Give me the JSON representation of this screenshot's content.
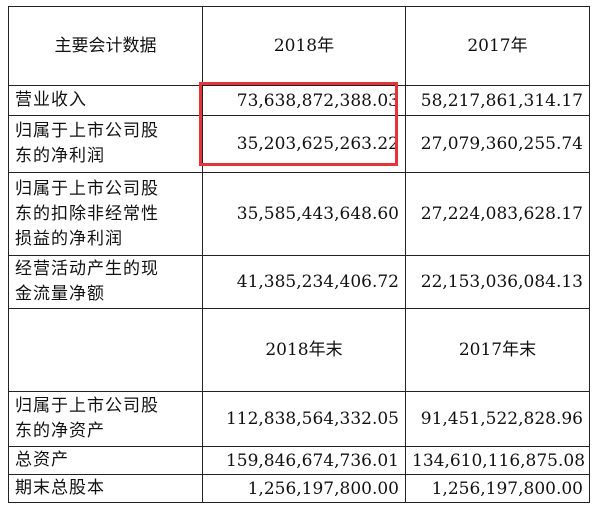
{
  "header": {
    "label": "主要会计数据",
    "col_2018": "2018年",
    "col_2017": "2017年"
  },
  "rows_a": [
    {
      "label_lines": [
        "营业收入"
      ],
      "v2018": "73,638,872,388.03",
      "v2017": "58,217,861,314.17"
    },
    {
      "label_lines": [
        "归属于上市公司股",
        "东的净利润"
      ],
      "v2018": "35,203,625,263.22",
      "v2017": "27,079,360,255.74"
    },
    {
      "label_lines": [
        "归属于上市公司股",
        "东的扣除非经常性",
        "损益的净利润"
      ],
      "v2018": "35,585,443,648.60",
      "v2017": "27,224,083,628.17"
    },
    {
      "label_lines": [
        "经营活动产生的现",
        "金流量净额"
      ],
      "v2018": "41,385,234,406.72",
      "v2017": "22,153,036,084.13"
    }
  ],
  "subheader": {
    "col_2018": "2018年末",
    "col_2017": "2017年末"
  },
  "rows_b": [
    {
      "label_lines": [
        "归属于上市公司股",
        "东的净资产"
      ],
      "v2018": "112,838,564,332.05",
      "v2017": "91,451,522,828.96"
    },
    {
      "label_lines": [
        "总资产"
      ],
      "v2018": "159,846,674,736.01",
      "v2017": "134,610,116,875.08"
    },
    {
      "label_lines": [
        "期末总股本"
      ],
      "v2018": "1,256,197,800.00",
      "v2017": "1,256,197,800.00"
    }
  ],
  "colors": {
    "border": "#222222",
    "highlight": "#e3343a",
    "text": "#111111",
    "background": "#ffffff"
  }
}
